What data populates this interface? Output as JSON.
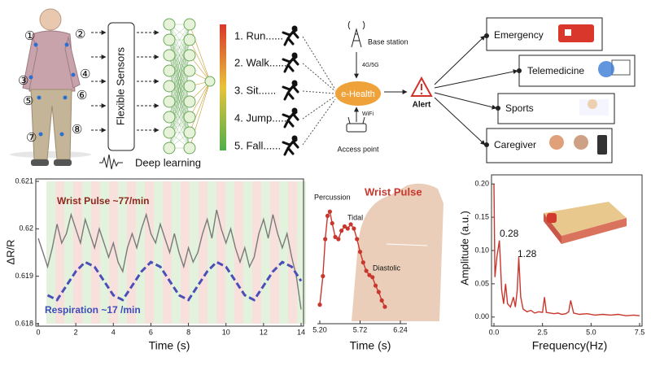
{
  "diagram": {
    "sensor_labels": [
      "①",
      "②",
      "③",
      "④",
      "⑤",
      "⑥",
      "⑦",
      "⑧"
    ],
    "sensor_box": "Flexible Sensors",
    "network_label": "Deep learning",
    "activities": [
      "1. Run......",
      "2. Walk......",
      "3. Sit......",
      "4. Jump......",
      "5. Fall......"
    ],
    "base_station": "Base station",
    "network": "4G/5G",
    "hub": "e-Health",
    "wifi": "WiFi",
    "access_point": "Access point",
    "alert": "Alert",
    "services": [
      "Emergency",
      "Telemedicine",
      "Sports",
      "Caregiver"
    ]
  },
  "chart_data": [
    {
      "type": "line",
      "xlabel": "Time (s)",
      "ylabel": "ΔR/R",
      "xlim": [
        0,
        14
      ],
      "ylim": [
        0.618,
        0.621
      ],
      "xticks": [
        0,
        2,
        4,
        6,
        8,
        10,
        12,
        14
      ],
      "yticks": [
        0.618,
        0.619,
        0.62,
        0.621
      ],
      "frame": true,
      "series": [
        {
          "name": "Wrist Pulse ~77/min",
          "color": "#7a7a7a",
          "dashed": false,
          "x": [
            0,
            0.25,
            0.5,
            0.75,
            1,
            1.25,
            1.5,
            1.75,
            2,
            2.25,
            2.5,
            2.75,
            3,
            3.25,
            3.5,
            3.75,
            4,
            4.25,
            4.5,
            4.75,
            5,
            5.25,
            5.5,
            5.75,
            6,
            6.25,
            6.5,
            6.75,
            7,
            7.25,
            7.5,
            7.75,
            8,
            8.25,
            8.5,
            8.75,
            9,
            9.25,
            9.5,
            9.75,
            10,
            10.25,
            10.5,
            10.75,
            11,
            11.25,
            11.5,
            11.75,
            12,
            12.25,
            12.5,
            12.75,
            13,
            13.25,
            13.5,
            13.75,
            14
          ],
          "values": [
            0.6198,
            0.6195,
            0.6192,
            0.6196,
            0.6201,
            0.6197,
            0.6199,
            0.6203,
            0.62,
            0.6197,
            0.6202,
            0.6199,
            0.6196,
            0.62,
            0.6197,
            0.6194,
            0.6197,
            0.6193,
            0.6191,
            0.6196,
            0.6199,
            0.6196,
            0.62,
            0.6203,
            0.6199,
            0.6197,
            0.6201,
            0.6198,
            0.6195,
            0.6199,
            0.6195,
            0.6192,
            0.6196,
            0.6193,
            0.6195,
            0.6199,
            0.6202,
            0.6198,
            0.6204,
            0.62,
            0.6197,
            0.62,
            0.6196,
            0.6193,
            0.6196,
            0.6192,
            0.6194,
            0.6199,
            0.6202,
            0.6198,
            0.6203,
            0.6199,
            0.6196,
            0.6199,
            0.6194,
            0.619,
            0.6183
          ]
        },
        {
          "name": "Respiration ~17 /min",
          "color": "#4a4fb8",
          "dashed": true,
          "x": [
            0.5,
            1,
            1.5,
            2,
            2.5,
            3,
            3.5,
            4,
            4.5,
            5,
            5.5,
            6,
            6.5,
            7,
            7.5,
            8,
            8.5,
            9,
            9.5,
            10,
            10.5,
            11,
            11.5,
            12,
            12.5,
            13,
            13.5,
            14
          ],
          "values": [
            0.6186,
            0.6185,
            0.6188,
            0.6191,
            0.6193,
            0.6192,
            0.6189,
            0.6186,
            0.6185,
            0.6188,
            0.6191,
            0.6193,
            0.6192,
            0.6189,
            0.6186,
            0.6185,
            0.6188,
            0.6191,
            0.6193,
            0.6192,
            0.6189,
            0.6186,
            0.6185,
            0.6188,
            0.6191,
            0.6193,
            0.6192,
            0.6189
          ]
        }
      ]
    },
    {
      "type": "line",
      "title": "Wrist Pulse",
      "xlabel": "Time (s)",
      "xlim": [
        5.2,
        6.24
      ],
      "ylim": [
        0,
        1
      ],
      "xticks": [
        {
          "value": 5.2,
          "label": "5.20"
        },
        {
          "value": 5.72,
          "label": "5.72"
        },
        {
          "value": 6.24,
          "label": "6.24"
        }
      ],
      "frame": false,
      "annotations": [
        "Percussion",
        "Tidal",
        "Diastolic"
      ],
      "series": [
        {
          "color": "#c8372d",
          "dashed": false,
          "markers": true,
          "x": [
            5.2,
            5.24,
            5.27,
            5.3,
            5.33,
            5.36,
            5.4,
            5.44,
            5.48,
            5.52,
            5.56,
            5.6,
            5.64,
            5.68,
            5.72,
            5.76,
            5.8,
            5.84,
            5.88,
            5.92,
            5.96,
            6,
            6.04
          ],
          "values": [
            0.08,
            0.35,
            0.7,
            0.92,
            0.96,
            0.85,
            0.72,
            0.7,
            0.78,
            0.82,
            0.8,
            0.84,
            0.8,
            0.7,
            0.58,
            0.48,
            0.4,
            0.36,
            0.34,
            0.26,
            0.2,
            0.12,
            0.06
          ]
        }
      ]
    },
    {
      "type": "line",
      "xlabel": "Frequency(Hz)",
      "ylabel": "Amplitude (a.u.)",
      "xlim": [
        0,
        7.5
      ],
      "ylim": [
        -0.01,
        0.21
      ],
      "xticks": [
        {
          "value": 0,
          "label": "0.0"
        },
        2.5,
        {
          "value": 5,
          "label": "5.0"
        },
        7.5
      ],
      "yticks": [
        {
          "value": 0,
          "label": "0.00"
        },
        0.05,
        {
          "value": 0.1,
          "label": "0.10"
        },
        0.15,
        {
          "value": 0.2,
          "label": "0.20"
        }
      ],
      "frame": true,
      "annotations": [
        "0.28",
        "1.28"
      ],
      "series": [
        {
          "color": "#c8372d",
          "dashed": false,
          "x": [
            0,
            0.05,
            0.15,
            0.28,
            0.4,
            0.5,
            0.6,
            0.7,
            0.85,
            1,
            1.1,
            1.2,
            1.28,
            1.38,
            1.5,
            1.7,
            1.9,
            2.1,
            2.3,
            2.5,
            2.6,
            2.7,
            2.9,
            3.1,
            3.3,
            3.5,
            3.7,
            3.85,
            3.95,
            4.1,
            4.4,
            4.8,
            5.2,
            5.6,
            6,
            6.4,
            6.8,
            7.2,
            7.5
          ],
          "values": [
            0.2,
            0.06,
            0.09,
            0.115,
            0.04,
            0.02,
            0.05,
            0.02,
            0.015,
            0.03,
            0.015,
            0.04,
            0.09,
            0.03,
            0.012,
            0.008,
            0.01,
            0.006,
            0.008,
            0.007,
            0.03,
            0.007,
            0.006,
            0.005,
            0.006,
            0.004,
            0.005,
            0.008,
            0.025,
            0.006,
            0.004,
            0.005,
            0.003,
            0.004,
            0.003,
            0.004,
            0.002,
            0.003,
            0.002
          ]
        }
      ]
    }
  ]
}
